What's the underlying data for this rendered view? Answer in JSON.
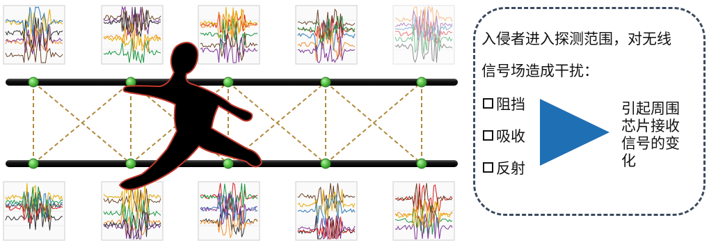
{
  "panel": {
    "line1": "入侵者进入探测范围，对无线",
    "line2": "信号场造成干扰：",
    "items": [
      "阻挡",
      "吸收",
      "反射"
    ],
    "result": [
      "引起周围",
      "芯片接收",
      "信号的变",
      "化"
    ]
  },
  "colors": {
    "node": "#5bc84a",
    "truss": "#b08a3c",
    "arrow": "#1f6fb4",
    "silhouette_outline": "#c0392b",
    "panel_border": "#3a4a5e"
  },
  "icons": [
    "person-silhouette-icon",
    "arrow-right-triangle-icon",
    "checkbox-icon"
  ]
}
